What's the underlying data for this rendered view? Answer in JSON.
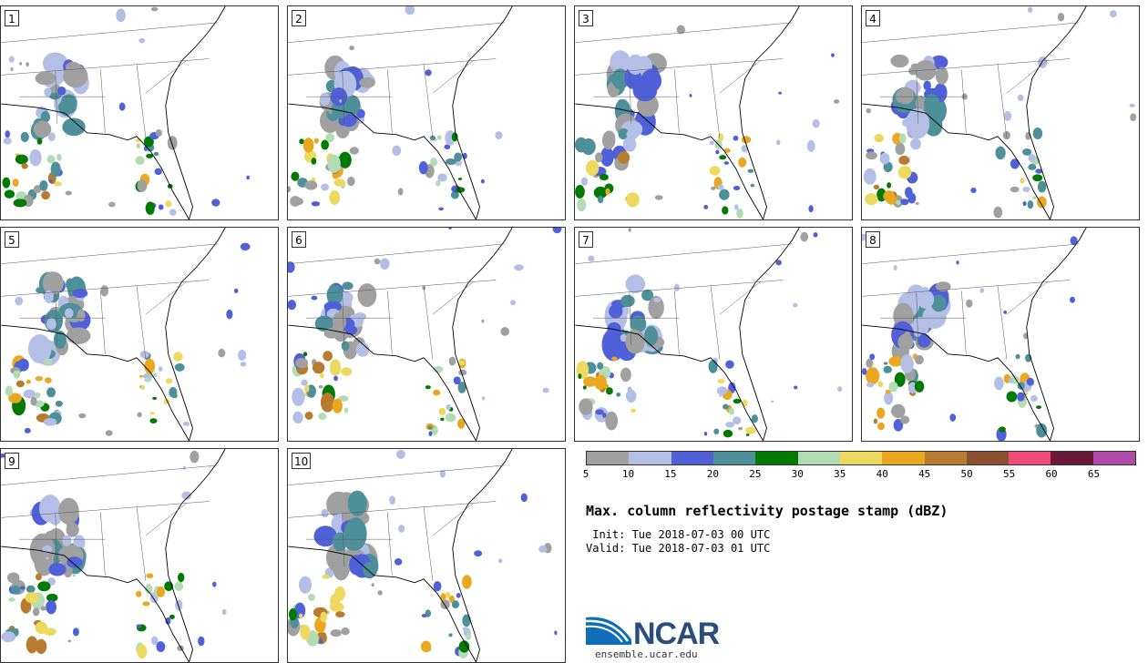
{
  "panels": [
    {
      "label": "1"
    },
    {
      "label": "2"
    },
    {
      "label": "3"
    },
    {
      "label": "4"
    },
    {
      "label": "5"
    },
    {
      "label": "6"
    },
    {
      "label": "7"
    },
    {
      "label": "8"
    },
    {
      "label": "9"
    },
    {
      "label": "10"
    }
  ],
  "colorbar": {
    "colors": [
      "#a0a0a0",
      "#b4bfe6",
      "#5060d8",
      "#4e9099",
      "#007a00",
      "#b4dcb4",
      "#eed960",
      "#e9a820",
      "#b87c30",
      "#8a5030",
      "#f04a78",
      "#6a1a38",
      "#b04aa8"
    ],
    "ticks": [
      "5",
      "10",
      "15",
      "20",
      "25",
      "30",
      "35",
      "40",
      "45",
      "50",
      "55",
      "60",
      "65"
    ]
  },
  "title": "Max. column reflectivity postage stamp (dBZ)",
  "init_line": " Init: Tue 2018-07-03 00 UTC",
  "valid_line": "Valid: Tue 2018-07-03 01 UTC",
  "logo": {
    "text": "NCAR",
    "url": "ensemble.ucar.edu"
  }
}
